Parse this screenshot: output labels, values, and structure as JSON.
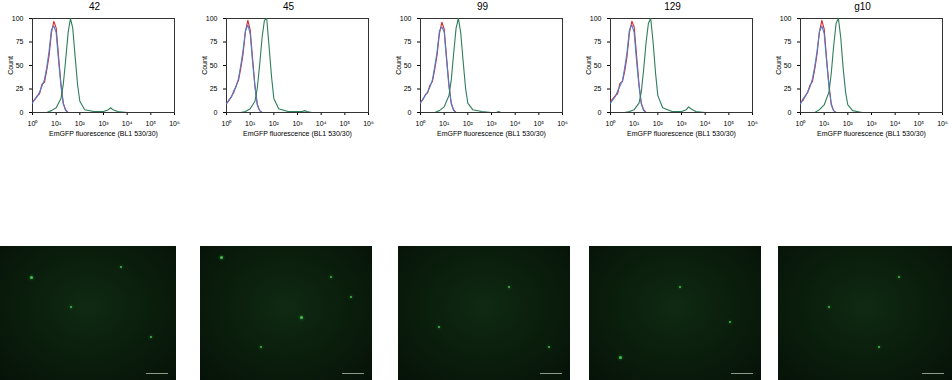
{
  "chart_data": [
    {
      "type": "line",
      "title": "42",
      "xlabel": "EmGFP fluorescence (BL1 530/30)",
      "ylabel": "Count",
      "log": "x",
      "xlim": [
        1,
        1000000
      ],
      "xticks": [
        {
          "value": 1,
          "label": "10⁰"
        },
        {
          "value": 10,
          "label": "10¹"
        },
        {
          "value": 100,
          "label": "10²"
        },
        {
          "value": 1000,
          "label": "10³"
        },
        {
          "value": 10000,
          "label": "10⁴"
        },
        {
          "value": 100000,
          "label": "10⁵"
        },
        {
          "value": 1000000,
          "label": "10⁶"
        }
      ],
      "ylim": [
        0,
        100
      ],
      "yticks": [
        0,
        25,
        50,
        75,
        100
      ],
      "series": [
        {
          "color": "#d62728",
          "x": [
            1,
            1.3,
            1.6,
            2,
            2.5,
            3.2,
            4,
            5,
            6.3,
            8,
            10,
            12.6,
            16,
            20,
            25,
            32
          ],
          "values": [
            12,
            14,
            18,
            20,
            30,
            32,
            45,
            60,
            85,
            97,
            90,
            60,
            30,
            10,
            3,
            0
          ]
        },
        {
          "color": "#4a7fd4",
          "x": [
            1,
            1.3,
            1.6,
            2,
            2.5,
            3.2,
            4,
            5,
            6.3,
            8,
            10,
            12.6,
            16,
            20,
            25,
            32
          ],
          "values": [
            10,
            15,
            17,
            22,
            28,
            35,
            48,
            65,
            88,
            92,
            85,
            55,
            28,
            9,
            2,
            0
          ]
        },
        {
          "color": "#2e7d5b",
          "x": [
            4,
            6.3,
            10,
            16,
            20,
            25,
            32,
            40,
            50,
            63,
            80,
            100,
            160,
            400,
            1000,
            1600,
            2000,
            2500,
            4000,
            10000
          ],
          "values": [
            0,
            2,
            5,
            15,
            30,
            55,
            85,
            100,
            90,
            60,
            30,
            12,
            3,
            1,
            1,
            3,
            5,
            3,
            1,
            0
          ]
        }
      ]
    },
    {
      "type": "line",
      "title": "45",
      "xlabel": "EmGFP fluorescence (BL1 530/30)",
      "ylabel": "Count",
      "log": "x",
      "xlim": [
        1,
        1000000
      ],
      "xticks": [
        {
          "value": 1,
          "label": "10⁰"
        },
        {
          "value": 10,
          "label": "10¹"
        },
        {
          "value": 100,
          "label": "10²"
        },
        {
          "value": 1000,
          "label": "10³"
        },
        {
          "value": 10000,
          "label": "10⁴"
        },
        {
          "value": 100000,
          "label": "10⁵"
        },
        {
          "value": 1000000,
          "label": "10⁶"
        }
      ],
      "ylim": [
        0,
        100
      ],
      "yticks": [
        0,
        25,
        50,
        75,
        100
      ],
      "series": [
        {
          "color": "#d62728",
          "x": [
            1,
            1.3,
            1.6,
            2,
            2.5,
            3.2,
            4,
            5,
            6.3,
            8,
            10,
            12.6,
            16,
            20,
            25,
            32
          ],
          "values": [
            10,
            13,
            17,
            21,
            28,
            34,
            47,
            62,
            86,
            98,
            88,
            58,
            28,
            9,
            2,
            0
          ]
        },
        {
          "color": "#4a7fd4",
          "x": [
            1,
            1.3,
            1.6,
            2,
            2.5,
            3.2,
            4,
            5,
            6.3,
            8,
            10,
            12.6,
            16,
            20,
            25,
            32
          ],
          "values": [
            9,
            14,
            16,
            23,
            27,
            36,
            50,
            66,
            87,
            93,
            84,
            54,
            27,
            8,
            2,
            0
          ]
        },
        {
          "color": "#2e7d5b",
          "x": [
            4,
            6.3,
            10,
            16,
            20,
            25,
            32,
            40,
            50,
            63,
            80,
            100,
            160,
            400,
            1000,
            1600,
            2000,
            2500,
            4000,
            10000
          ],
          "values": [
            0,
            1,
            4,
            12,
            26,
            50,
            80,
            98,
            100,
            70,
            38,
            15,
            4,
            1,
            1,
            1,
            2,
            1,
            0,
            0
          ]
        }
      ]
    },
    {
      "type": "line",
      "title": "99",
      "xlabel": "EmGFP fluorescence (BL1 530/30)",
      "ylabel": "Count",
      "log": "x",
      "xlim": [
        1,
        1000000
      ],
      "xticks": [
        {
          "value": 1,
          "label": "10⁰"
        },
        {
          "value": 10,
          "label": "10¹"
        },
        {
          "value": 100,
          "label": "10²"
        },
        {
          "value": 1000,
          "label": "10³"
        },
        {
          "value": 10000,
          "label": "10⁴"
        },
        {
          "value": 100000,
          "label": "10⁵"
        },
        {
          "value": 1000000,
          "label": "10⁶"
        }
      ],
      "ylim": [
        0,
        100
      ],
      "yticks": [
        0,
        25,
        50,
        75,
        100
      ],
      "series": [
        {
          "color": "#d62728",
          "x": [
            1,
            1.3,
            1.6,
            2,
            2.5,
            3.2,
            4,
            5,
            6.3,
            8,
            10,
            12.6,
            16,
            20,
            25,
            32
          ],
          "values": [
            11,
            14,
            19,
            21,
            29,
            33,
            46,
            61,
            84,
            96,
            89,
            59,
            29,
            10,
            3,
            0
          ]
        },
        {
          "color": "#4a7fd4",
          "x": [
            1,
            1.3,
            1.6,
            2,
            2.5,
            3.2,
            4,
            5,
            6.3,
            8,
            10,
            12.6,
            16,
            20,
            25,
            32
          ],
          "values": [
            10,
            15,
            18,
            22,
            27,
            35,
            49,
            64,
            87,
            91,
            86,
            56,
            27,
            9,
            2,
            0
          ]
        },
        {
          "color": "#2e7d5b",
          "x": [
            4,
            6.3,
            10,
            16,
            20,
            25,
            32,
            40,
            50,
            63,
            80,
            100,
            160,
            400,
            1000,
            1600,
            2000,
            2500,
            4000,
            10000
          ],
          "values": [
            0,
            2,
            6,
            18,
            35,
            62,
            90,
            100,
            85,
            55,
            26,
            10,
            3,
            1,
            0,
            0,
            1,
            0,
            0,
            0
          ]
        }
      ]
    },
    {
      "type": "line",
      "title": "129",
      "xlabel": "EmGFP fluorescence (BL1 530/30)",
      "ylabel": "Count",
      "log": "x",
      "xlim": [
        1,
        1000000
      ],
      "xticks": [
        {
          "value": 1,
          "label": "10⁰"
        },
        {
          "value": 10,
          "label": "10¹"
        },
        {
          "value": 100,
          "label": "10²"
        },
        {
          "value": 1000,
          "label": "10³"
        },
        {
          "value": 10000,
          "label": "10⁴"
        },
        {
          "value": 100000,
          "label": "10⁵"
        },
        {
          "value": 1000000,
          "label": "10⁶"
        }
      ],
      "ylim": [
        0,
        100
      ],
      "yticks": [
        0,
        25,
        50,
        75,
        100
      ],
      "series": [
        {
          "color": "#d62728",
          "x": [
            1,
            1.3,
            1.6,
            2,
            2.5,
            3.2,
            4,
            5,
            6.3,
            8,
            10,
            12.6,
            16,
            20,
            25,
            32
          ],
          "values": [
            12,
            15,
            18,
            20,
            31,
            33,
            44,
            60,
            85,
            97,
            91,
            61,
            30,
            10,
            3,
            0
          ]
        },
        {
          "color": "#4a7fd4",
          "x": [
            1,
            1.3,
            1.6,
            2,
            2.5,
            3.2,
            4,
            5,
            6.3,
            8,
            10,
            12.6,
            16,
            20,
            25,
            32
          ],
          "values": [
            10,
            14,
            17,
            23,
            28,
            34,
            48,
            64,
            88,
            93,
            85,
            55,
            28,
            9,
            2,
            0
          ]
        },
        {
          "color": "#2e7d5b",
          "x": [
            4,
            6.3,
            10,
            16,
            20,
            25,
            32,
            40,
            50,
            63,
            80,
            100,
            160,
            400,
            1000,
            1600,
            2000,
            2500,
            4000,
            10000
          ],
          "values": [
            0,
            1,
            3,
            10,
            22,
            45,
            75,
            95,
            100,
            75,
            42,
            18,
            5,
            1,
            1,
            3,
            6,
            4,
            1,
            0
          ]
        }
      ]
    },
    {
      "type": "line",
      "title": "g10",
      "xlabel": "EmGFP fluorescence (BL1 530/30)",
      "ylabel": "Count",
      "log": "x",
      "xlim": [
        1,
        1000000
      ],
      "xticks": [
        {
          "value": 1,
          "label": "10⁰"
        },
        {
          "value": 10,
          "label": "10¹"
        },
        {
          "value": 100,
          "label": "10²"
        },
        {
          "value": 1000,
          "label": "10³"
        },
        {
          "value": 10000,
          "label": "10⁴"
        },
        {
          "value": 100000,
          "label": "10⁵"
        },
        {
          "value": 1000000,
          "label": "10⁶"
        }
      ],
      "ylim": [
        0,
        100
      ],
      "yticks": [
        0,
        25,
        50,
        75,
        100
      ],
      "series": [
        {
          "color": "#d62728",
          "x": [
            1,
            1.3,
            1.6,
            2,
            2.5,
            3.2,
            4,
            5,
            6.3,
            8,
            10,
            12.6,
            16,
            20,
            25,
            32
          ],
          "values": [
            11,
            13,
            18,
            21,
            29,
            33,
            46,
            62,
            86,
            98,
            89,
            58,
            29,
            9,
            2,
            0
          ]
        },
        {
          "color": "#4a7fd4",
          "x": [
            1,
            1.3,
            1.6,
            2,
            2.5,
            3.2,
            4,
            5,
            6.3,
            8,
            10,
            12.6,
            16,
            20,
            25,
            32
          ],
          "values": [
            9,
            15,
            17,
            22,
            27,
            36,
            49,
            65,
            86,
            92,
            84,
            55,
            27,
            8,
            2,
            0
          ]
        },
        {
          "color": "#2e7d5b",
          "x": [
            4,
            6.3,
            10,
            16,
            20,
            25,
            32,
            40,
            50,
            63,
            80,
            100,
            160,
            400,
            1000,
            1600,
            2000,
            2500,
            4000,
            10000
          ],
          "values": [
            0,
            3,
            8,
            22,
            42,
            70,
            95,
            100,
            80,
            48,
            22,
            8,
            2,
            0,
            0,
            0,
            0,
            0,
            0,
            0
          ]
        }
      ]
    }
  ]
}
